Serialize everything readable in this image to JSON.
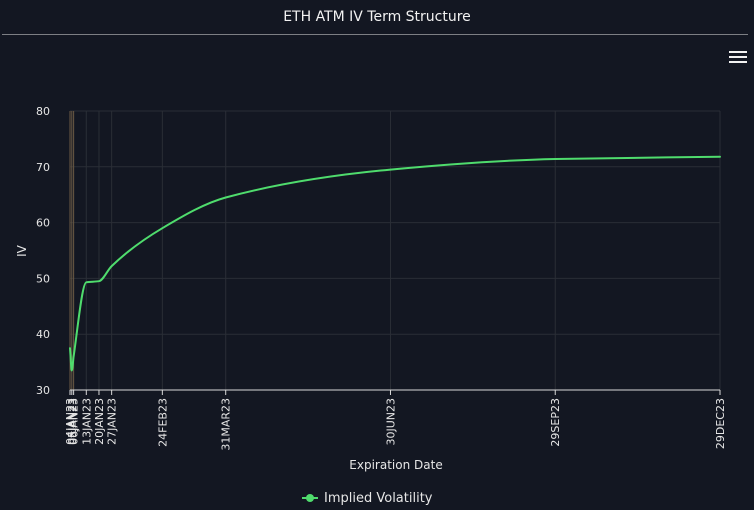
{
  "header": {
    "title": "ETH ATM IV Term Structure"
  },
  "colors": {
    "background": "#131722",
    "series": "#4fdc6d",
    "grid": "#2a2e36",
    "axis": "#d9d9d9"
  },
  "icons": {
    "menu": "hamburger-menu-icon"
  },
  "chart_data": {
    "type": "line",
    "xlabel": "Expiration Date",
    "ylabel": "IV",
    "ylim": [
      30,
      80
    ],
    "yticks": [
      30,
      40,
      50,
      60,
      70,
      80
    ],
    "x_axis_type": "date",
    "xticks": [
      {
        "date": "2023-01-04",
        "label": "04JAN23"
      },
      {
        "date": "2023-01-05",
        "label": "05JAN23"
      },
      {
        "date": "2023-01-06",
        "label": "06JAN23"
      },
      {
        "date": "2023-01-13",
        "label": "13JAN23"
      },
      {
        "date": "2023-01-20",
        "label": "20JAN23"
      },
      {
        "date": "2023-01-27",
        "label": "27JAN23"
      },
      {
        "date": "2023-02-24",
        "label": "24FEB23"
      },
      {
        "date": "2023-03-31",
        "label": "31MAR23"
      },
      {
        "date": "2023-06-30",
        "label": "30JUN23"
      },
      {
        "date": "2023-09-29",
        "label": "29SEP23"
      },
      {
        "date": "2023-12-29",
        "label": "29DEC23"
      }
    ],
    "grid": true,
    "legend_position": "bottom-center",
    "series": [
      {
        "name": "Implied Volatility",
        "points": [
          {
            "date": "2023-01-04",
            "value": 37.5
          },
          {
            "date": "2023-01-05",
            "value": 33.5
          },
          {
            "date": "2023-01-06",
            "value": 36.0
          },
          {
            "date": "2023-01-13",
            "value": 49.3
          },
          {
            "date": "2023-01-20",
            "value": 49.5
          },
          {
            "date": "2023-01-27",
            "value": 52.2
          },
          {
            "date": "2023-02-24",
            "value": 59.0
          },
          {
            "date": "2023-03-31",
            "value": 64.5
          },
          {
            "date": "2023-06-30",
            "value": 69.5
          },
          {
            "date": "2023-09-29",
            "value": 71.4
          },
          {
            "date": "2023-12-29",
            "value": 71.8
          }
        ]
      }
    ]
  }
}
